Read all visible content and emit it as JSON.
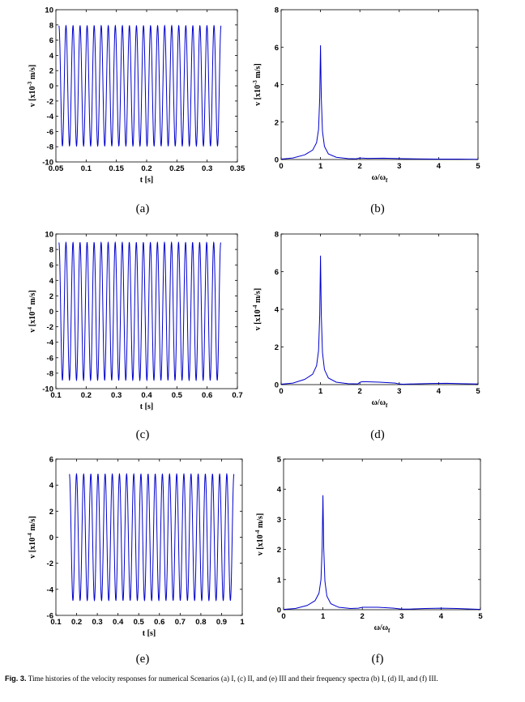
{
  "caption": {
    "label": "Fig. 3.",
    "text": "Time histories of the velocity responses for numerical Scenarios (a) I, (c) II, and (e) III and their frequency spectra (b) I, (d) II, and (f) III."
  },
  "chart_data": [
    {
      "panel": "(a)",
      "type": "line",
      "xlabel": "t [s]",
      "ylabel": "v [x10-3 m/s]",
      "ylabel_parts": {
        "pre": "v [x10",
        "exp": "-3",
        "post": " m/s]"
      },
      "xlim": [
        0.05,
        0.35
      ],
      "ylim": [
        -10,
        10
      ],
      "xticks": [
        "0.05",
        "0.1",
        "0.15",
        "0.2",
        "0.25",
        "0.3",
        "0.35"
      ],
      "yticks": [
        "-10",
        "-8",
        "-6",
        "-4",
        "-2",
        "0",
        "2",
        "4",
        "6",
        "8",
        "10"
      ],
      "xtick_values": [
        0.05,
        0.1,
        0.15,
        0.2,
        0.25,
        0.3,
        0.35
      ],
      "ytick_values": [
        -10,
        -8,
        -6,
        -4,
        -2,
        0,
        2,
        4,
        6,
        8,
        10
      ],
      "series": [
        {
          "t_start": 0.055,
          "t_end": 0.323,
          "amplitude": 7.9,
          "cycles": 23
        }
      ],
      "color": "#0000cc"
    },
    {
      "panel": "(b)",
      "type": "line",
      "xlabel": "ω/ωf",
      "xlabel_parts": {
        "pre": "ω/ω",
        "sub": "f"
      },
      "ylabel": "v [x10-3 m/s]",
      "ylabel_parts": {
        "pre": "v [x10",
        "exp": "-3",
        "post": " m/s]"
      },
      "xlim": [
        0,
        5
      ],
      "ylim": [
        0,
        8
      ],
      "xticks": [
        "0",
        "1",
        "2",
        "3",
        "4",
        "5"
      ],
      "yticks": [
        "0",
        "2",
        "4",
        "6",
        "8"
      ],
      "xtick_values": [
        0,
        1,
        2,
        3,
        4,
        5
      ],
      "ytick_values": [
        0,
        2,
        4,
        6,
        8
      ],
      "series": [
        {
          "peak_x": 1.0,
          "peak_y": 6.1,
          "x": [
            0,
            0.3,
            0.6,
            0.8,
            0.9,
            0.95,
            0.98,
            1.0,
            1.02,
            1.05,
            1.1,
            1.2,
            1.4,
            1.7,
            1.9,
            2.0,
            2.2,
            2.6,
            3.0,
            3.5,
            4.0,
            4.5,
            5.0
          ],
          "y": [
            0.02,
            0.08,
            0.25,
            0.5,
            0.9,
            1.6,
            3.3,
            6.1,
            3.3,
            1.5,
            0.7,
            0.3,
            0.12,
            0.05,
            0.04,
            0.08,
            0.06,
            0.07,
            0.05,
            0.03,
            0.02,
            0.02,
            0.01
          ]
        }
      ],
      "color": "#0000cc"
    },
    {
      "panel": "(c)",
      "type": "line",
      "xlabel": "t [s]",
      "ylabel": "v [x10-4 m/s]",
      "ylabel_parts": {
        "pre": "v [x10",
        "exp": "-4",
        "post": " m/s]"
      },
      "xlim": [
        0.1,
        0.7
      ],
      "ylim": [
        -10,
        10
      ],
      "xticks": [
        "0.1",
        "0.2",
        "0.3",
        "0.4",
        "0.5",
        "0.6",
        "0.7"
      ],
      "yticks": [
        "-10",
        "-8",
        "-6",
        "-4",
        "-2",
        "0",
        "2",
        "4",
        "6",
        "8",
        "10"
      ],
      "xtick_values": [
        0.1,
        0.2,
        0.3,
        0.4,
        0.5,
        0.6,
        0.7
      ],
      "ytick_values": [
        -10,
        -8,
        -6,
        -4,
        -2,
        0,
        2,
        4,
        6,
        8,
        10
      ],
      "series": [
        {
          "t_start": 0.11,
          "t_end": 0.645,
          "amplitude": 8.9,
          "cycles": 23
        }
      ],
      "color": "#0000cc"
    },
    {
      "panel": "(d)",
      "type": "line",
      "xlabel": "ω/ωf",
      "xlabel_parts": {
        "pre": "ω/ω",
        "sub": "f"
      },
      "ylabel": "v [x10-4 m/s]",
      "ylabel_parts": {
        "pre": "v [x10",
        "exp": "-4",
        "post": " m/s]"
      },
      "xlim": [
        0,
        5
      ],
      "ylim": [
        0,
        8
      ],
      "xticks": [
        "0",
        "1",
        "2",
        "3",
        "4",
        "5"
      ],
      "yticks": [
        "0",
        "2",
        "4",
        "6",
        "8"
      ],
      "xtick_values": [
        0,
        1,
        2,
        3,
        4,
        5
      ],
      "ytick_values": [
        0,
        2,
        4,
        6,
        8
      ],
      "series": [
        {
          "peak_x": 1.0,
          "peak_y": 6.85,
          "x": [
            0,
            0.3,
            0.6,
            0.8,
            0.9,
            0.95,
            0.98,
            1.0,
            1.02,
            1.05,
            1.1,
            1.2,
            1.4,
            1.7,
            1.95,
            2.0,
            2.05,
            2.2,
            2.5,
            2.9,
            3.0,
            3.1,
            3.4,
            3.8,
            4.2,
            4.6,
            5.0
          ],
          "y": [
            0.02,
            0.08,
            0.28,
            0.55,
            1.0,
            1.8,
            3.7,
            6.85,
            3.7,
            1.7,
            0.8,
            0.35,
            0.13,
            0.05,
            0.04,
            0.12,
            0.15,
            0.15,
            0.13,
            0.08,
            0.03,
            0.02,
            0.04,
            0.06,
            0.07,
            0.05,
            0.03
          ]
        }
      ],
      "color": "#0000cc"
    },
    {
      "panel": "(e)",
      "type": "line",
      "xlabel": "t [s]",
      "ylabel": "v [x10-4 m/s]",
      "ylabel_parts": {
        "pre": "v [x10",
        "exp": "-4",
        "post": " m/s]"
      },
      "xlim": [
        0.1,
        1.0
      ],
      "ylim": [
        -6,
        6
      ],
      "xticks": [
        "0.1",
        "0.2",
        "0.3",
        "0.4",
        "0.5",
        "0.6",
        "0.7",
        "0.8",
        "0.9",
        "1"
      ],
      "yticks": [
        "-6",
        "-4",
        "-2",
        "0",
        "2",
        "4",
        "6"
      ],
      "xtick_values": [
        0.1,
        0.2,
        0.3,
        0.4,
        0.5,
        0.6,
        0.7,
        0.8,
        0.9,
        1.0
      ],
      "ytick_values": [
        -6,
        -4,
        -2,
        0,
        2,
        4,
        6
      ],
      "series": [
        {
          "t_start": 0.165,
          "t_end": 0.96,
          "amplitude": 4.85,
          "cycles": 23
        }
      ],
      "color": "#0000cc"
    },
    {
      "panel": "(f)",
      "type": "line",
      "xlabel": "ω/ωf",
      "xlabel_parts": {
        "pre": "ω/ω",
        "sub": "f"
      },
      "ylabel": "v [x10-4 m/s]",
      "ylabel_parts": {
        "pre": "v [x10",
        "exp": "-4",
        "post": " m/s]"
      },
      "xlim": [
        0,
        5
      ],
      "ylim": [
        0,
        5
      ],
      "xticks": [
        "0",
        "1",
        "2",
        "3",
        "4",
        "5"
      ],
      "yticks": [
        "0",
        "1",
        "2",
        "3",
        "4",
        "5"
      ],
      "xtick_values": [
        0,
        1,
        2,
        3,
        4,
        5
      ],
      "ytick_values": [
        0,
        1,
        2,
        3,
        4,
        5
      ],
      "series": [
        {
          "peak_x": 1.0,
          "peak_y": 3.8,
          "x": [
            0,
            0.3,
            0.6,
            0.8,
            0.9,
            0.95,
            0.98,
            1.0,
            1.02,
            1.05,
            1.1,
            1.2,
            1.4,
            1.7,
            1.9,
            2.0,
            2.1,
            2.4,
            2.8,
            3.0,
            3.2,
            3.6,
            4.0,
            4.4,
            4.8,
            5.0
          ],
          "y": [
            0.01,
            0.04,
            0.14,
            0.3,
            0.55,
            1.0,
            2.05,
            3.8,
            2.05,
            0.95,
            0.45,
            0.2,
            0.08,
            0.04,
            0.05,
            0.08,
            0.08,
            0.08,
            0.05,
            0.02,
            0.02,
            0.04,
            0.05,
            0.04,
            0.02,
            0.01
          ]
        }
      ],
      "color": "#0000cc"
    }
  ]
}
